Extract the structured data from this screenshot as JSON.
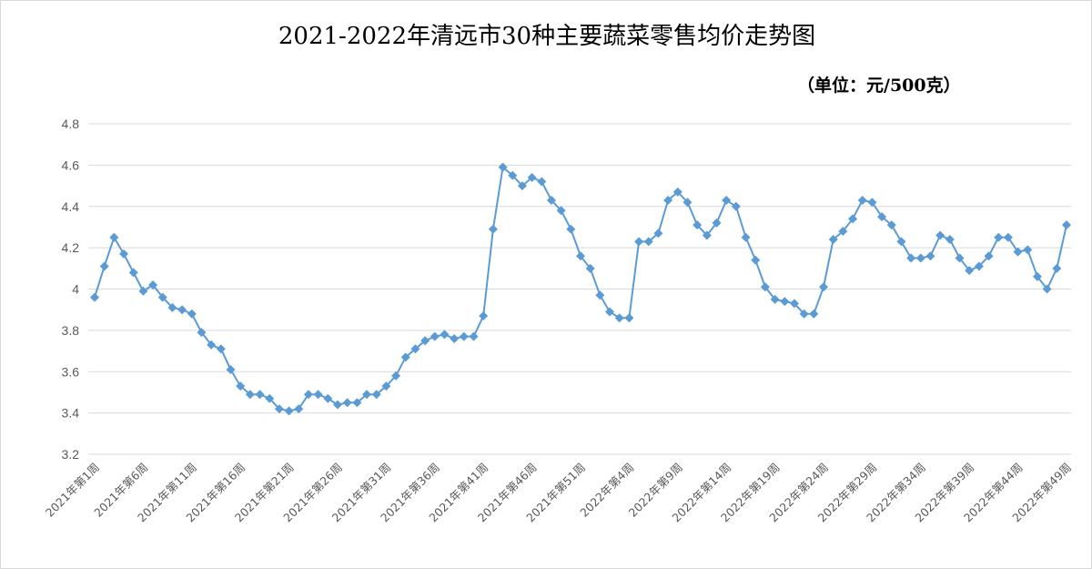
{
  "chart_data": {
    "type": "line",
    "title": "2021-2022年清远市30种主要蔬菜零售均价走势图",
    "unit_label": "（单位：元/500克）",
    "xlabel": "",
    "ylabel": "",
    "ylim": [
      3.2,
      4.8
    ],
    "yticks": [
      {
        "value": 3.2,
        "label": "3.2"
      },
      {
        "value": 3.4,
        "label": "3.4"
      },
      {
        "value": 3.6,
        "label": "3.6"
      },
      {
        "value": 3.8,
        "label": "3.8"
      },
      {
        "value": 4.0,
        "label": "4"
      },
      {
        "value": 4.2,
        "label": "4.2"
      },
      {
        "value": 4.4,
        "label": "4.4"
      },
      {
        "value": 4.6,
        "label": "4.6"
      },
      {
        "value": 4.8,
        "label": "4.8"
      }
    ],
    "grid": true,
    "legend": "none",
    "x_tick_labels": [
      {
        "index": 0,
        "label": "2021年第1周"
      },
      {
        "index": 5,
        "label": "2021年第6周"
      },
      {
        "index": 10,
        "label": "2021年第11周"
      },
      {
        "index": 15,
        "label": "2021年第16周"
      },
      {
        "index": 20,
        "label": "2021年第21周"
      },
      {
        "index": 25,
        "label": "2021年第26周"
      },
      {
        "index": 30,
        "label": "2021年第31周"
      },
      {
        "index": 35,
        "label": "2021年第36周"
      },
      {
        "index": 40,
        "label": "2021年第41周"
      },
      {
        "index": 45,
        "label": "2021年第46周"
      },
      {
        "index": 50,
        "label": "2021年第51周"
      },
      {
        "index": 55,
        "label": "2022年第4周"
      },
      {
        "index": 60,
        "label": "2022年第9周"
      },
      {
        "index": 65,
        "label": "2022年第14周"
      },
      {
        "index": 70,
        "label": "2022年第19周"
      },
      {
        "index": 75,
        "label": "2022年第24周"
      },
      {
        "index": 80,
        "label": "2022年第29周"
      },
      {
        "index": 85,
        "label": "2022年第34周"
      },
      {
        "index": 90,
        "label": "2022年第39周"
      },
      {
        "index": 95,
        "label": "2022年第44周"
      },
      {
        "index": 100,
        "label": "2022年第49周"
      }
    ],
    "series": [
      {
        "color": "#5b9bd5",
        "marker": "diamond",
        "values": [
          3.96,
          4.11,
          4.25,
          4.17,
          4.08,
          3.99,
          4.02,
          3.96,
          3.91,
          3.9,
          3.88,
          3.79,
          3.73,
          3.71,
          3.61,
          3.53,
          3.49,
          3.49,
          3.47,
          3.42,
          3.41,
          3.42,
          3.49,
          3.49,
          3.47,
          3.44,
          3.45,
          3.45,
          3.49,
          3.49,
          3.53,
          3.58,
          3.67,
          3.71,
          3.75,
          3.77,
          3.78,
          3.76,
          3.77,
          3.77,
          3.87,
          4.29,
          4.59,
          4.55,
          4.5,
          4.54,
          4.52,
          4.43,
          4.38,
          4.29,
          4.16,
          4.1,
          3.97,
          3.89,
          3.86,
          3.86,
          4.23,
          4.23,
          4.27,
          4.43,
          4.47,
          4.42,
          4.31,
          4.26,
          4.32,
          4.43,
          4.4,
          4.25,
          4.14,
          4.01,
          3.95,
          3.94,
          3.93,
          3.88,
          3.88,
          4.01,
          4.24,
          4.28,
          4.34,
          4.43,
          4.42,
          4.35,
          4.31,
          4.23,
          4.15,
          4.15,
          4.16,
          4.26,
          4.24,
          4.15,
          4.09,
          4.11,
          4.16,
          4.25,
          4.25,
          4.18,
          4.19,
          4.06,
          4.0,
          4.1,
          4.31
        ]
      }
    ]
  }
}
